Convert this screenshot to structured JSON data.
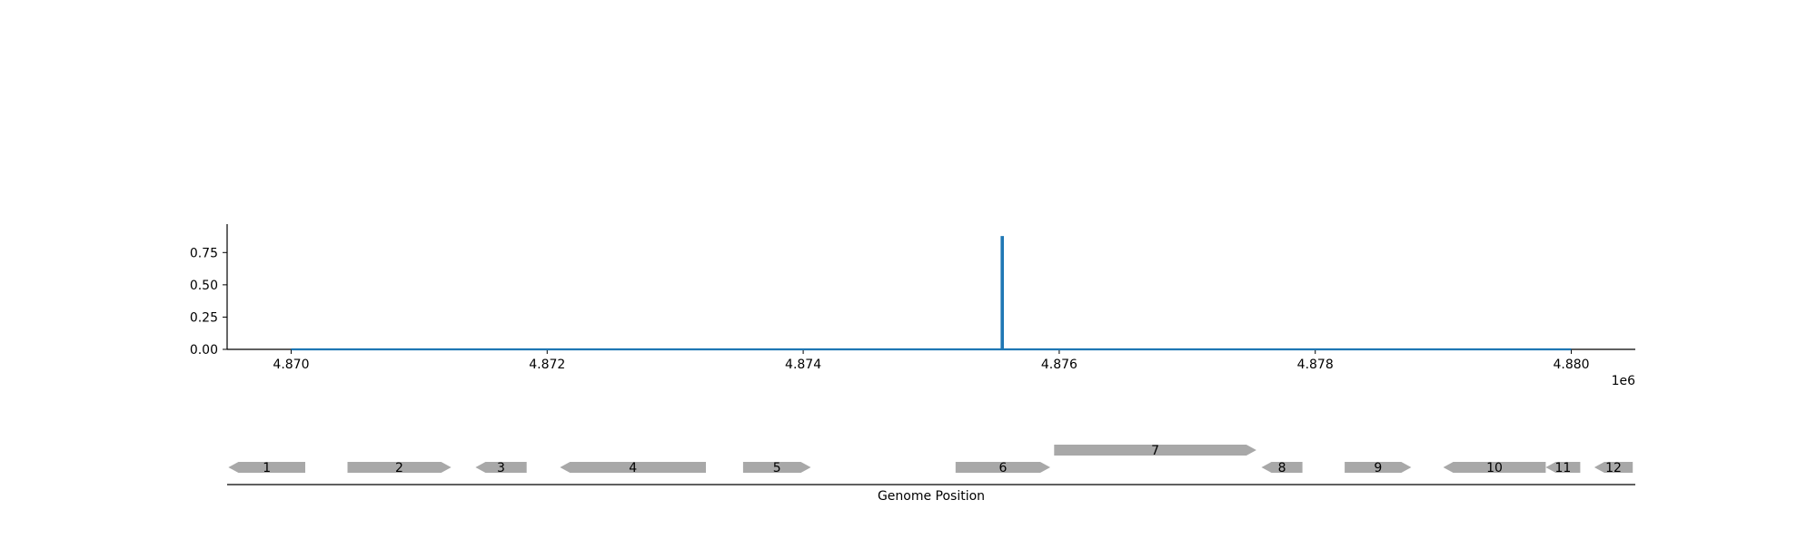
{
  "chart_data": [
    {
      "type": "line",
      "series": [
        {
          "x": [
            4870000,
            4875550,
            4875550,
            4875560,
            4875560,
            4880000
          ],
          "y": [
            0,
            0,
            0.87,
            0.87,
            0,
            0
          ]
        }
      ],
      "xlim": [
        4869500,
        4880500
      ],
      "ylim": [
        0,
        0.97
      ],
      "xticks": [
        4870000,
        4872000,
        4874000,
        4876000,
        4878000,
        4880000
      ],
      "xtick_labels": [
        "4.870",
        "4.872",
        "4.874",
        "4.876",
        "4.878",
        "4.880"
      ],
      "x_offset_label": "1e6",
      "yticks": [
        0,
        0.25,
        0.5,
        0.75
      ],
      "ytick_labels": [
        "0.00",
        "0.25",
        "0.50",
        "0.75"
      ],
      "grid": false,
      "color": "#1f77b4"
    },
    {
      "type": "gene_track",
      "xlabel": "Genome Position",
      "xlim": [
        4869500,
        4880500
      ],
      "color": "#a8a8a8",
      "genes": [
        {
          "label": "1",
          "start": 4869510,
          "end": 4870110,
          "strand": -1,
          "row": 0
        },
        {
          "label": "2",
          "start": 4870440,
          "end": 4871250,
          "strand": 1,
          "row": 0
        },
        {
          "label": "3",
          "start": 4871440,
          "end": 4871840,
          "strand": -1,
          "row": 0
        },
        {
          "label": "4",
          "start": 4872100,
          "end": 4873240,
          "strand": -1,
          "row": 0
        },
        {
          "label": "5",
          "start": 4873530,
          "end": 4874060,
          "strand": 1,
          "row": 0
        },
        {
          "label": "6",
          "start": 4875190,
          "end": 4875930,
          "strand": 1,
          "row": 0
        },
        {
          "label": "7",
          "start": 4875960,
          "end": 4877540,
          "strand": 1,
          "row": 1
        },
        {
          "label": "8",
          "start": 4877580,
          "end": 4877900,
          "strand": -1,
          "row": 0
        },
        {
          "label": "9",
          "start": 4878230,
          "end": 4878750,
          "strand": 1,
          "row": 0
        },
        {
          "label": "10",
          "start": 4879000,
          "end": 4879800,
          "strand": -1,
          "row": 0
        },
        {
          "label": "11",
          "start": 4879800,
          "end": 4880070,
          "strand": -1,
          "row": 0
        },
        {
          "label": "12",
          "start": 4880180,
          "end": 4880480,
          "strand": -1,
          "row": 0
        }
      ]
    }
  ]
}
